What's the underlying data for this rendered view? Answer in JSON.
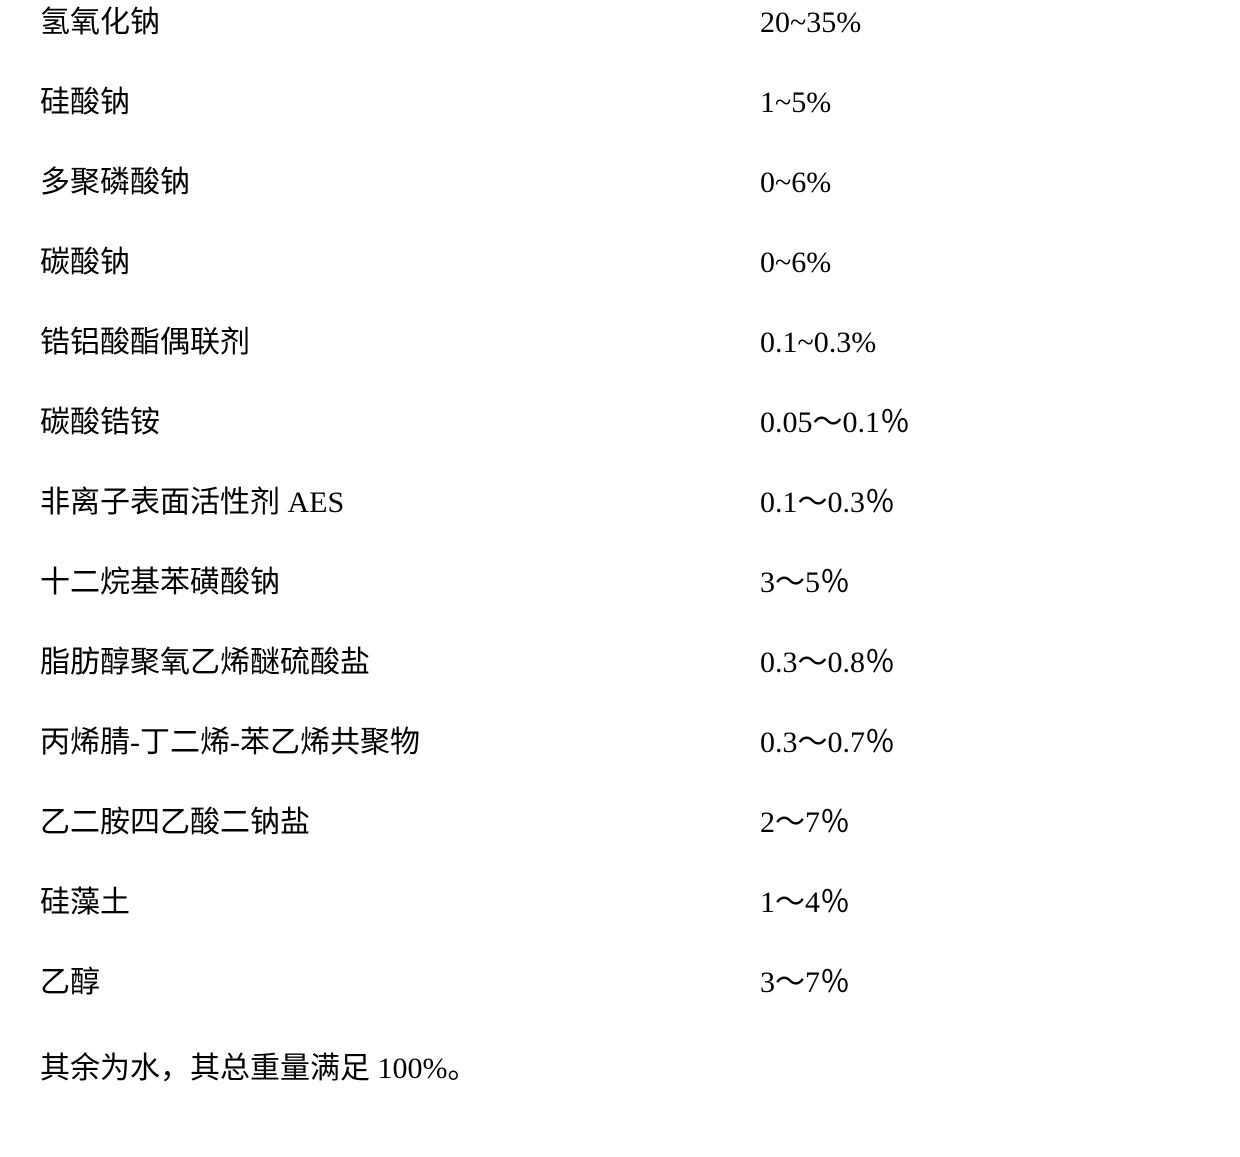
{
  "text_color": "#000000",
  "background_color": "#ffffff",
  "font_size_pt": 22,
  "rows": [
    {
      "label": "氢氧化钠",
      "value": "20~35%"
    },
    {
      "label": "硅酸钠",
      "value": "1~5%"
    },
    {
      "label": "多聚磷酸钠",
      "value": "0~6%"
    },
    {
      "label": "碳酸钠",
      "value": "0~6%"
    },
    {
      "label": "锆铝酸酯偶联剂",
      "value": "0.1~0.3%"
    },
    {
      "label": "碳酸锆铵",
      "value": "0.05～0.1％"
    },
    {
      "label": "非离子表面活性剂 AES",
      "value": "0.1～0.3％"
    },
    {
      "label": "十二烷基苯磺酸钠",
      "value": "3～5％"
    },
    {
      "label": "脂肪醇聚氧乙烯醚硫酸盐",
      "value": "0.3～0.8％"
    },
    {
      "label": "丙烯腈-丁二烯-苯乙烯共聚物",
      "value": "0.3～0.7％"
    },
    {
      "label": "乙二胺四乙酸二钠盐",
      "value": "2～7％"
    },
    {
      "label": "硅藻土",
      "value": "1～4％"
    },
    {
      "label": "乙醇",
      "value": "3～7％"
    }
  ],
  "footer": "其余为水，其总重量满足 100%。"
}
